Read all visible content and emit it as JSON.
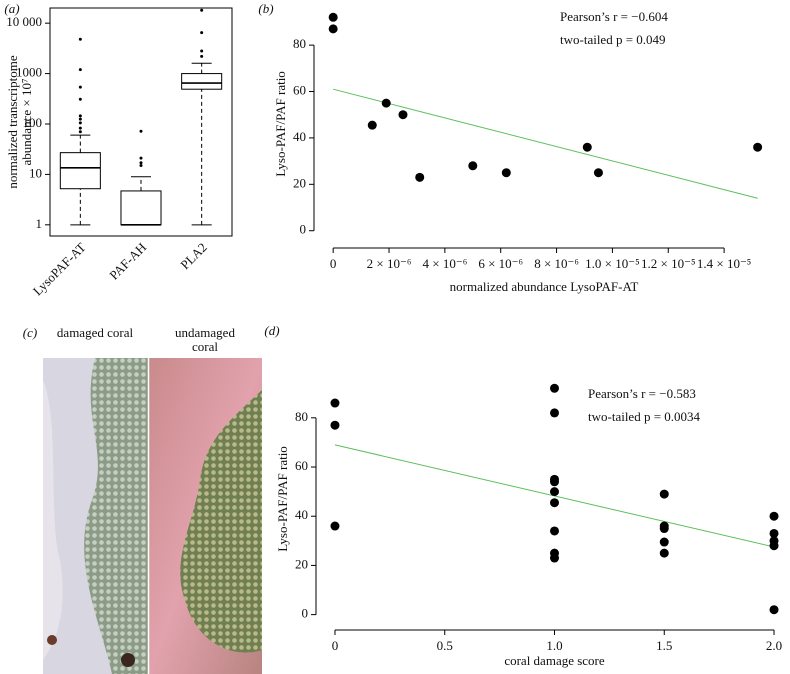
{
  "chart_data": [
    {
      "type": "box",
      "panel": "(a)",
      "log": true,
      "box_frame": true,
      "ylabel": [
        "normalized transcriptome",
        "abundance × 10⁷"
      ],
      "categories": [
        "LysoPAF-AT",
        "PAF-AH",
        "PLA2"
      ],
      "boxes": [
        {
          "whisker_low": 1,
          "q1": 5.2,
          "median": 13.5,
          "q3": 27,
          "whisker_high": 60,
          "outliers": [
            4800,
            1200,
            540,
            310,
            145,
            125,
            105,
            83,
            70
          ]
        },
        {
          "whisker_low": 1,
          "q1": 1,
          "median": 1,
          "q3": 4.7,
          "whisker_high": 9,
          "outliers": [
            15,
            17,
            21,
            72
          ]
        },
        {
          "whisker_low": 1,
          "q1": 490,
          "median": 650,
          "q3": 1000,
          "whisker_high": 1600,
          "outliers": [
            2200,
            2800,
            6500,
            18000
          ]
        }
      ],
      "ylim": [
        0.6,
        20000
      ],
      "yticks": [
        1,
        10,
        100,
        1000,
        {
          "value": 10000,
          "label": "10 000"
        }
      ]
    },
    {
      "type": "scatter",
      "panel": "(b)",
      "xlabel": "normalized abundance LysoPAF-AT",
      "ylabel": "Lyso-PAF/PAF ratio",
      "annotations": [
        "Pearson’s r = −0.604",
        "two-tailed p = 0.049"
      ],
      "x": [
        0,
        0,
        1.4e-06,
        1.9e-06,
        2.5e-06,
        3.1e-06,
        5e-06,
        6.2e-06,
        9.1e-06,
        9.5e-06,
        1.52e-05
      ],
      "y": [
        92,
        87,
        45.5,
        55,
        50,
        23,
        28,
        25,
        36,
        25,
        36
      ],
      "color": "#000000",
      "fit_x": [
        0,
        1.52e-05
      ],
      "fit_y": [
        61,
        14
      ],
      "fit_color": "#5cbf5c",
      "xlim": [
        -4e-07,
        1.55e-05
      ],
      "ylim": [
        -4,
        96
      ],
      "xticks": [
        0,
        {
          "value": 2e-06,
          "label": "2 × 10⁻⁶"
        },
        {
          "value": 4e-06,
          "label": "4 × 10⁻⁶"
        },
        {
          "value": 6e-06,
          "label": "6 × 10⁻⁶"
        },
        {
          "value": 8e-06,
          "label": "8 × 10⁻⁶"
        },
        {
          "value": 1e-05,
          "label": "1.0 × 10⁻⁵"
        },
        {
          "value": 1.2e-05,
          "label": "1.2 × 10⁻⁵"
        },
        {
          "value": 1.4e-05,
          "label": "1.4 × 10⁻⁵"
        }
      ],
      "yticks": [
        0,
        20,
        40,
        60,
        80
      ]
    },
    {
      "type": "scatter",
      "panel": "(d)",
      "xlabel": "coral damage score",
      "ylabel": "Lyso-PAF/PAF ratio",
      "annotations": [
        "Pearson’s r = −0.583",
        "two-tailed p = 0.0034"
      ],
      "x": [
        0,
        0,
        0,
        1,
        1,
        1,
        1,
        1,
        1,
        1,
        1,
        1,
        1.5,
        1.5,
        1.5,
        1.5,
        1.5,
        2,
        2,
        2,
        2,
        2
      ],
      "y": [
        86,
        77,
        36,
        92,
        82,
        55,
        54,
        50,
        45.5,
        34,
        25,
        23,
        49,
        36,
        35,
        29.5,
        25,
        40,
        33,
        30,
        28,
        2
      ],
      "color": "#000000",
      "fit_x": [
        0,
        2
      ],
      "fit_y": [
        69,
        27.5
      ],
      "fit_color": "#5cbf5c",
      "xlim": [
        -0.05,
        2.05
      ],
      "ylim": [
        -3,
        97
      ],
      "xticks": [
        0,
        0.5,
        {
          "value": 1,
          "label": "1.0"
        },
        1.5,
        {
          "value": 2,
          "label": "2.0"
        }
      ],
      "yticks": [
        0,
        20,
        40,
        60,
        80
      ]
    }
  ],
  "photo": {
    "panel": "(c)",
    "left_caption": "damaged coral",
    "right_caption": "undamaged coral"
  }
}
